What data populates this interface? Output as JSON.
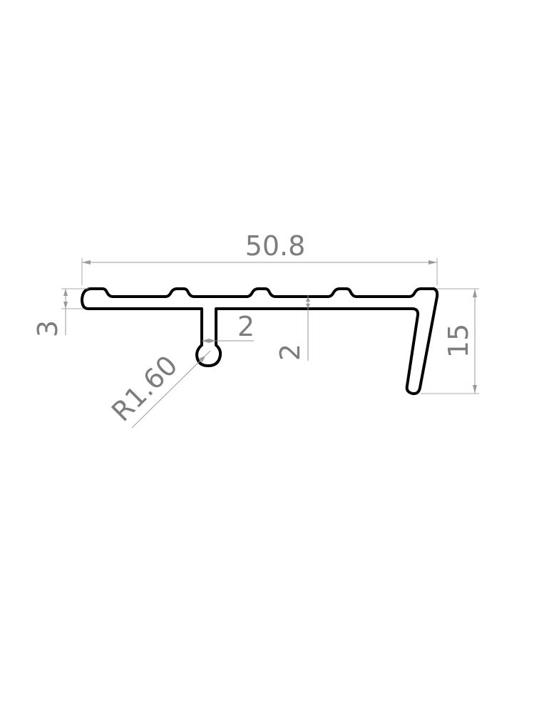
{
  "drawing": {
    "dimensions": {
      "overall_width": "50.8",
      "top_thickness": "3",
      "stem_width": "2",
      "wall_thickness": "2",
      "leg_height": "15",
      "bulb_radius": "R1.60"
    },
    "colors": {
      "profile": "#000000",
      "dimension": "#7d7d7d",
      "background": "#ffffff"
    }
  }
}
